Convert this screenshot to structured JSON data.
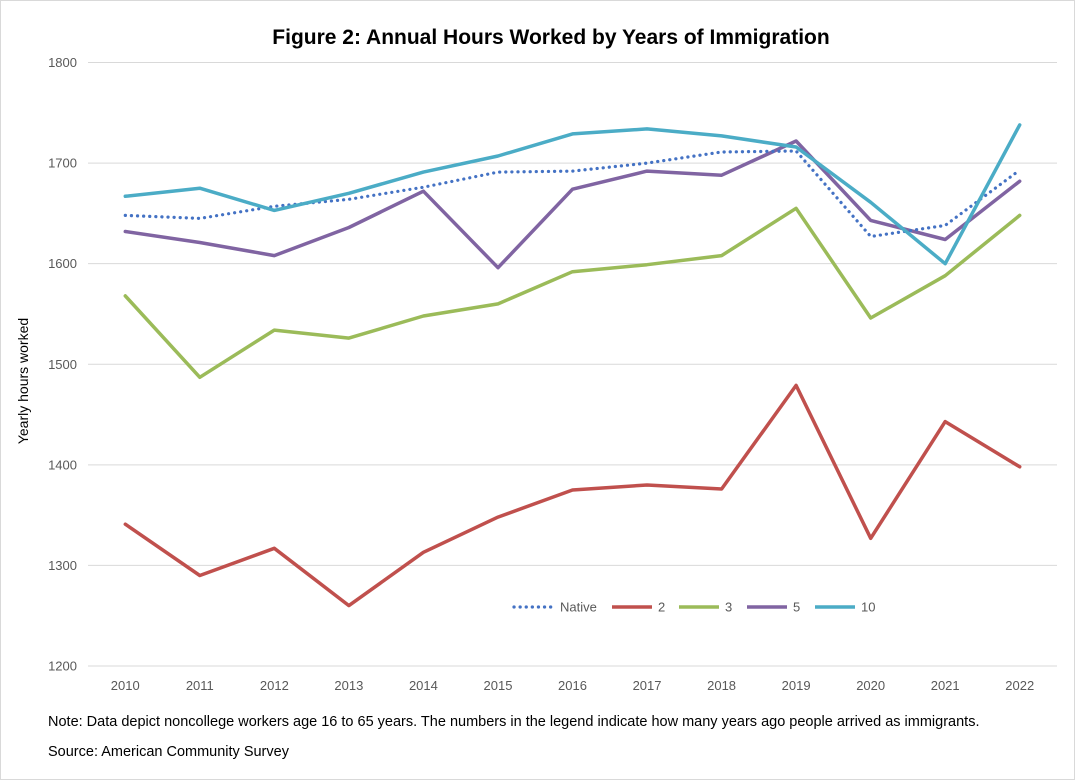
{
  "chart_data": {
    "type": "line",
    "title": "Figure 2: Annual Hours Worked by Years of Immigration",
    "xlabel": "",
    "ylabel": "Yearly hours worked",
    "ylim": [
      1200,
      1800
    ],
    "yticks": [
      1200,
      1300,
      1400,
      1500,
      1600,
      1700,
      1800
    ],
    "grid": true,
    "legend_position": "bottom-inside",
    "categories": [
      "2010",
      "2011",
      "2012",
      "2013",
      "2014",
      "2015",
      "2016",
      "2017",
      "2018",
      "2019",
      "2020",
      "2021",
      "2022"
    ],
    "series": [
      {
        "name": "Native",
        "color": "#4472C4",
        "dash": "dotted",
        "values": [
          1648,
          1645,
          1657,
          1664,
          1676,
          1691,
          1692,
          1700,
          1711,
          1712,
          1627,
          1638,
          1693
        ]
      },
      {
        "name": "2",
        "color": "#C0504D",
        "dash": "solid",
        "values": [
          1341,
          1290,
          1317,
          1260,
          1313,
          1348,
          1375,
          1380,
          1376,
          1479,
          1327,
          1443,
          1398
        ]
      },
      {
        "name": "3",
        "color": "#9BBB59",
        "dash": "solid",
        "values": [
          1568,
          1487,
          1534,
          1526,
          1548,
          1560,
          1592,
          1599,
          1608,
          1655,
          1546,
          1588,
          1648
        ]
      },
      {
        "name": "5",
        "color": "#8064A2",
        "dash": "solid",
        "values": [
          1632,
          1621,
          1608,
          1636,
          1672,
          1596,
          1674,
          1692,
          1688,
          1722,
          1643,
          1624,
          1682
        ]
      },
      {
        "name": "10",
        "color": "#4BACC6",
        "dash": "solid",
        "values": [
          1667,
          1675,
          1653,
          1670,
          1691,
          1707,
          1729,
          1734,
          1727,
          1716,
          1661,
          1600,
          1738
        ]
      }
    ]
  },
  "notes": {
    "note": "Note: Data depict noncollege workers age 16 to 65 years. The numbers in the legend indicate how many years ago people arrived as immigrants.",
    "source": "Source: American Community Survey"
  }
}
